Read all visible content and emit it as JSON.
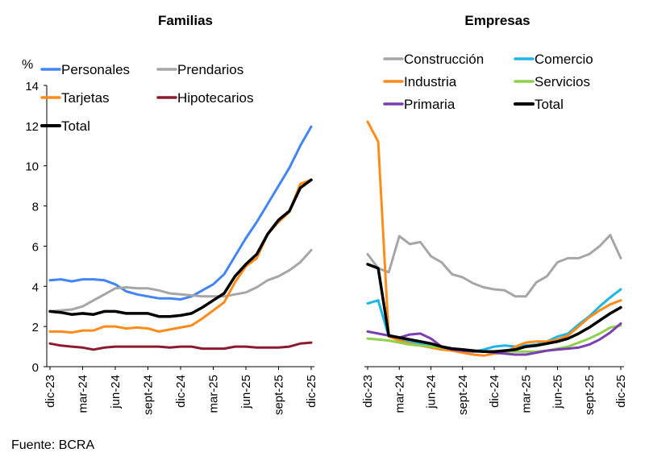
{
  "source": "Fuente: BCRA",
  "chart_data": [
    {
      "type": "line",
      "title": "Familias",
      "ylabel": "%",
      "ylim": [
        0,
        14
      ],
      "yticks": [
        0,
        2,
        4,
        6,
        8,
        10,
        12,
        14
      ],
      "x": [
        "dic-23",
        "ene-24",
        "feb-24",
        "mar-24",
        "abr-24",
        "may-24",
        "jun-24",
        "jul-24",
        "ago-24",
        "sept-24",
        "oct-24",
        "nov-24",
        "dic-24",
        "ene-25",
        "feb-25",
        "mar-25",
        "abr-25",
        "may-25",
        "jun-25",
        "jul-25",
        "ago-25",
        "sept-25",
        "oct-25",
        "nov-25",
        "dic-25"
      ],
      "xtick_labels": [
        "dic-23",
        "mar-24",
        "jun-24",
        "sept-24",
        "dic-24",
        "mar-25",
        "jun-25",
        "sept-25",
        "dic-25"
      ],
      "grid": false,
      "legend": "top-left",
      "series": [
        {
          "name": "Personales",
          "color": "#4285f4",
          "values": [
            4.3,
            4.35,
            4.25,
            4.35,
            4.35,
            4.3,
            4.1,
            3.75,
            3.6,
            3.5,
            3.4,
            3.4,
            3.35,
            3.5,
            3.8,
            4.1,
            4.6,
            5.5,
            6.4,
            7.2,
            8.1,
            9.0,
            9.9,
            11.0,
            11.95
          ]
        },
        {
          "name": "Prendarios",
          "color": "#a6a6a6",
          "values": [
            2.75,
            2.8,
            2.85,
            3.0,
            3.3,
            3.6,
            3.9,
            3.95,
            3.9,
            3.9,
            3.8,
            3.65,
            3.6,
            3.55,
            3.5,
            3.5,
            3.5,
            3.6,
            3.7,
            3.95,
            4.3,
            4.5,
            4.8,
            5.2,
            5.8
          ]
        },
        {
          "name": "Tarjetas",
          "color": "#ff8c1a",
          "values": [
            1.75,
            1.75,
            1.7,
            1.8,
            1.8,
            2.0,
            2.0,
            1.9,
            1.95,
            1.9,
            1.75,
            1.85,
            1.95,
            2.05,
            2.4,
            2.8,
            3.2,
            4.2,
            5.0,
            5.4,
            6.6,
            7.2,
            7.7,
            9.1,
            9.3
          ]
        },
        {
          "name": "Hipotecarios",
          "color": "#8b1a2e",
          "values": [
            1.15,
            1.05,
            1.0,
            0.95,
            0.85,
            0.95,
            1.0,
            1.0,
            1.0,
            1.0,
            1.0,
            0.95,
            1.0,
            1.0,
            0.9,
            0.9,
            0.9,
            1.0,
            1.0,
            0.95,
            0.95,
            0.95,
            1.0,
            1.15,
            1.2
          ]
        },
        {
          "name": "Total",
          "color": "#000000",
          "values": [
            2.75,
            2.7,
            2.6,
            2.65,
            2.6,
            2.75,
            2.75,
            2.65,
            2.65,
            2.65,
            2.5,
            2.5,
            2.55,
            2.65,
            2.95,
            3.3,
            3.65,
            4.5,
            5.1,
            5.6,
            6.6,
            7.3,
            7.75,
            8.9,
            9.3
          ]
        }
      ]
    },
    {
      "type": "line",
      "title": "Empresas",
      "ylim": [
        0,
        14
      ],
      "x": [
        "dic-23",
        "ene-24",
        "feb-24",
        "mar-24",
        "abr-24",
        "may-24",
        "jun-24",
        "jul-24",
        "ago-24",
        "sept-24",
        "oct-24",
        "nov-24",
        "dic-24",
        "ene-25",
        "feb-25",
        "mar-25",
        "abr-25",
        "may-25",
        "jun-25",
        "jul-25",
        "ago-25",
        "sept-25",
        "oct-25",
        "nov-25",
        "dic-25"
      ],
      "xtick_labels": [
        "dic-23",
        "mar-24",
        "jun-24",
        "sept-24",
        "dic-24",
        "mar-25",
        "jun-25",
        "sept-25",
        "dic-25"
      ],
      "grid": false,
      "legend": "top",
      "series": [
        {
          "name": "Construcción",
          "color": "#a6a6a6",
          "values": [
            5.6,
            4.9,
            4.7,
            6.5,
            6.1,
            6.2,
            5.5,
            5.2,
            4.6,
            4.45,
            4.15,
            3.95,
            3.85,
            3.8,
            3.5,
            3.5,
            4.2,
            4.5,
            5.2,
            5.4,
            5.4,
            5.6,
            6.0,
            6.55,
            5.4
          ]
        },
        {
          "name": "Comercio",
          "color": "#1fb5e6",
          "values": [
            3.15,
            3.3,
            1.5,
            1.35,
            1.25,
            1.15,
            1.05,
            0.9,
            0.85,
            0.8,
            0.75,
            0.85,
            1.0,
            1.05,
            1.0,
            1.05,
            1.1,
            1.25,
            1.5,
            1.65,
            2.1,
            2.5,
            3.0,
            3.45,
            3.85
          ]
        },
        {
          "name": "Industria",
          "color": "#ff8c1a",
          "values": [
            12.2,
            11.2,
            1.5,
            1.3,
            1.15,
            1.05,
            0.95,
            0.85,
            0.8,
            0.7,
            0.6,
            0.55,
            0.65,
            0.7,
            1.0,
            1.2,
            1.25,
            1.25,
            1.35,
            1.55,
            2.0,
            2.45,
            2.8,
            3.1,
            3.3
          ]
        },
        {
          "name": "Servicios",
          "color": "#8fd14f",
          "values": [
            1.4,
            1.35,
            1.3,
            1.2,
            1.1,
            1.05,
            1.0,
            0.95,
            0.9,
            0.85,
            0.8,
            0.75,
            0.75,
            0.75,
            0.75,
            0.75,
            0.75,
            0.8,
            0.9,
            1.0,
            1.2,
            1.4,
            1.65,
            1.95,
            2.05
          ]
        },
        {
          "name": "Primaria",
          "color": "#7b3fb0",
          "values": [
            1.75,
            1.65,
            1.55,
            1.45,
            1.6,
            1.65,
            1.4,
            1.0,
            0.85,
            0.8,
            0.75,
            0.75,
            0.7,
            0.65,
            0.6,
            0.6,
            0.7,
            0.8,
            0.85,
            0.9,
            0.95,
            1.1,
            1.35,
            1.7,
            2.15
          ]
        },
        {
          "name": "Total",
          "color": "#000000",
          "values": [
            5.1,
            4.9,
            1.55,
            1.45,
            1.35,
            1.25,
            1.15,
            1.0,
            0.9,
            0.85,
            0.8,
            0.75,
            0.75,
            0.8,
            0.85,
            1.0,
            1.05,
            1.15,
            1.25,
            1.4,
            1.65,
            1.95,
            2.3,
            2.65,
            2.95
          ]
        }
      ]
    }
  ]
}
